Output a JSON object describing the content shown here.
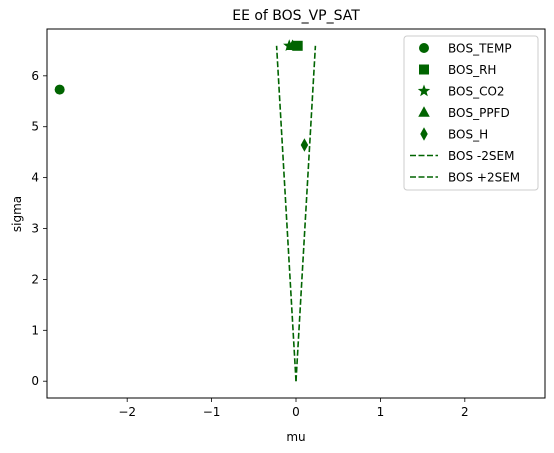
{
  "chart_data": {
    "type": "scatter",
    "title": "EE of BOS_VP_SAT",
    "xlabel": "mu",
    "ylabel": "sigma",
    "xlim": [
      -2.95,
      2.95
    ],
    "ylim": [
      -0.33,
      6.92
    ],
    "x_ticks": [
      -2,
      -1,
      0,
      1,
      2
    ],
    "x_tick_labels": [
      "−2",
      "−1",
      "0",
      "1",
      "2"
    ],
    "y_ticks": [
      0,
      1,
      2,
      3,
      4,
      5,
      6
    ],
    "y_tick_labels": [
      "0",
      "1",
      "2",
      "3",
      "4",
      "5",
      "6"
    ],
    "grid": false,
    "legend_position": "top-right",
    "color": "#006400",
    "points": [
      {
        "name": "BOS_TEMP",
        "marker": "circle",
        "x": -2.8,
        "y": 5.73
      },
      {
        "name": "BOS_RH",
        "marker": "square",
        "x": 0.02,
        "y": 6.59
      },
      {
        "name": "BOS_CO2",
        "marker": "star",
        "x": -0.08,
        "y": 6.59
      },
      {
        "name": "BOS_PPFD",
        "marker": "triangle",
        "x": -0.04,
        "y": 6.59
      },
      {
        "name": "BOS_H",
        "marker": "diamond",
        "x": 0.1,
        "y": 4.64
      }
    ],
    "lines": [
      {
        "name": "BOS -2SEM",
        "style": "dashed",
        "x": [
          0,
          -0.23
        ],
        "y": [
          0,
          6.59
        ]
      },
      {
        "name": "BOS +2SEM",
        "style": "dashed",
        "x": [
          0,
          0.23
        ],
        "y": [
          0,
          6.59
        ]
      }
    ]
  }
}
